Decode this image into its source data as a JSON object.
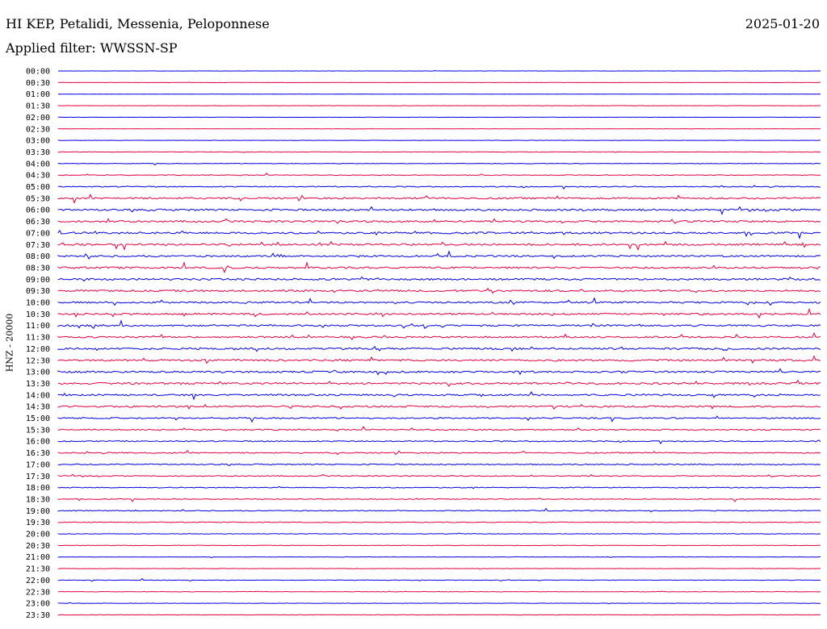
{
  "header": {
    "station": "HI KEP, Petalidi, Messenia, Peloponnese",
    "date": "2025-01-20",
    "filter": "Applied filter: WWSSN-SP"
  },
  "axis": {
    "ylabel": "HNZ - 20000"
  },
  "colors": {
    "blue": "#0000e6",
    "red": "#e6003c"
  },
  "time_labels": [
    "00:00",
    "00:30",
    "01:00",
    "01:30",
    "02:00",
    "02:30",
    "03:00",
    "03:30",
    "04:00",
    "04:30",
    "05:00",
    "05:30",
    "06:00",
    "06:30",
    "07:00",
    "07:30",
    "08:00",
    "08:30",
    "09:00",
    "09:30",
    "10:00",
    "10:30",
    "11:00",
    "11:30",
    "12:00",
    "12:30",
    "13:00",
    "13:30",
    "14:00",
    "14:30",
    "15:00",
    "15:30",
    "16:00",
    "16:30",
    "17:00",
    "17:30",
    "18:00",
    "18:30",
    "19:00",
    "19:30",
    "20:00",
    "20:30",
    "21:00",
    "21:30",
    "22:00",
    "22:30",
    "23:00",
    "23:30"
  ],
  "noise_level": [
    0.3,
    0.3,
    0.3,
    0.3,
    0.3,
    0.3,
    0.4,
    0.5,
    0.6,
    0.8,
    1.2,
    2.0,
    2.2,
    2.2,
    2.2,
    2.2,
    2.0,
    2.2,
    2.2,
    2.2,
    2.0,
    2.0,
    2.0,
    2.0,
    2.2,
    2.2,
    2.2,
    2.2,
    2.0,
    2.0,
    1.6,
    1.4,
    1.3,
    1.3,
    1.3,
    1.2,
    1.0,
    1.0,
    1.0,
    0.8,
    0.7,
    0.6,
    0.5,
    0.5,
    0.6,
    0.5,
    0.5,
    0.5
  ]
}
